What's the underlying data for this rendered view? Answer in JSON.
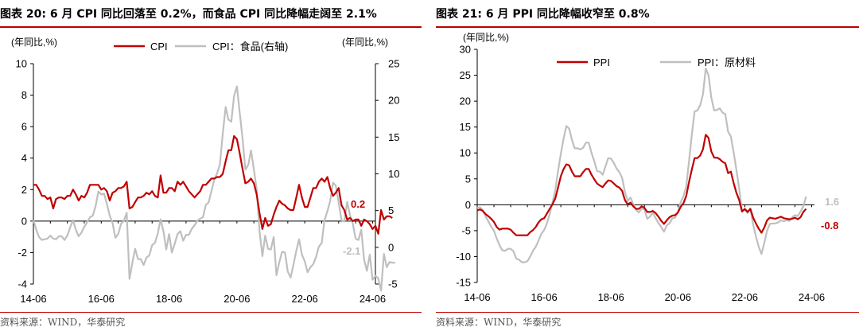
{
  "charts": [
    {
      "title": "图表 20:  6 月 CPI 同比回落至 0.2%，而食品 CPI 同比降幅走阔至 2.1%",
      "source": "资料来源：WIND，华泰研究",
      "chart_data": {
        "type": "line",
        "x_ticks": [
          "14-06",
          "16-06",
          "18-06",
          "20-06",
          "22-06",
          "24-06"
        ],
        "x_range": [
          "2014-06",
          "2024-07"
        ],
        "ylabel_left": "(年同比,%)",
        "ylabel_right": "(年同比,%)",
        "ylim_left": [
          -4,
          10
        ],
        "yticks_left": [
          -4,
          -2,
          0,
          2,
          4,
          6,
          8,
          10
        ],
        "ylim_right": [
          -5,
          25
        ],
        "yticks_right": [
          -5,
          0,
          5,
          10,
          15,
          20,
          25
        ],
        "legend_position": "top-center",
        "series": [
          {
            "name": "CPI",
            "axis": "left",
            "color": "#c00000",
            "start": "2014-06",
            "values": [
              2.3,
              2.3,
              2.0,
              1.6,
              1.6,
              1.4,
              1.5,
              0.8,
              1.4,
              1.5,
              1.5,
              1.4,
              1.6,
              1.6,
              2.0,
              1.7,
              1.3,
              1.6,
              1.5,
              1.8,
              2.3,
              2.3,
              2.3,
              2.3,
              2.0,
              2.1,
              1.9,
              1.3,
              1.8,
              1.9,
              2.1,
              2.1,
              2.2,
              2.5,
              0.8,
              0.9,
              1.2,
              1.5,
              1.5,
              1.6,
              1.8,
              1.7,
              1.9,
              1.6,
              1.5,
              2.9,
              1.8,
              1.8,
              2.1,
              2.1,
              1.9,
              2.5,
              2.3,
              2.5,
              2.2,
              1.9,
              1.7,
              1.5,
              1.7,
              1.9,
              2.3,
              2.3,
              2.5,
              2.7,
              2.7,
              2.8,
              2.8,
              3.0,
              3.8,
              4.5,
              4.5,
              5.4,
              5.2,
              4.3,
              3.3,
              2.4,
              2.5,
              2.7,
              2.4,
              1.7,
              0.5,
              -0.5,
              0.2,
              -0.3,
              -0.2,
              0.4,
              0.9,
              1.3,
              1.1,
              1.0,
              0.8,
              0.7,
              0.7,
              1.5,
              2.3,
              1.5,
              0.9,
              0.9,
              1.5,
              2.1,
              2.1,
              2.5,
              2.7,
              2.5,
              2.8,
              2.1,
              1.6,
              1.8,
              2.1,
              1.0,
              0.7,
              0.1,
              0.2,
              0.0,
              0.1,
              0.1,
              -0.3,
              0.1,
              0.0,
              -0.2,
              -0.5,
              -0.3,
              -0.8,
              0.7,
              0.1,
              0.3,
              0.3,
              0.2
            ]
          },
          {
            "name": "CPI：食品(右轴)",
            "axis": "right",
            "color": "#bfbfbf",
            "start": "2014-06",
            "values": [
              3.7,
              2.4,
              1.4,
              1.0,
              1.1,
              1.2,
              1.6,
              1.2,
              1.1,
              1.5,
              1.5,
              1.0,
              1.6,
              2.7,
              3.7,
              2.4,
              1.5,
              2.0,
              2.8,
              3.4,
              4.1,
              4.3,
              5.6,
              7.6,
              7.2,
              7.3,
              5.9,
              4.3,
              3.3,
              1.3,
              1.8,
              3.2,
              3.6,
              4.7,
              -4.3,
              -2.1,
              -0.2,
              -1.6,
              -1.6,
              -2.4,
              -1.4,
              -1.1,
              0.3,
              0.6,
              1.9,
              3.8,
              2.2,
              -0.3,
              1.8,
              -0.7,
              0.5,
              1.8,
              2.2,
              0.9,
              1.7,
              1.7,
              2.5,
              3.0,
              3.6,
              3.9,
              4.1,
              5.8,
              6.1,
              7.7,
              9.2,
              10.1,
              11.3,
              15.5,
              19.1,
              17.4,
              17.1,
              20.6,
              21.9,
              18.3,
              14.8,
              10.6,
              11.2,
              13.2,
              10.6,
              7.9,
              2.2,
              -1.2,
              1.6,
              -0.2,
              -0.3,
              1.4,
              -3.8,
              -2.0,
              -0.6,
              -0.7,
              -3.3,
              -4.1,
              -2.4,
              -0.5,
              1.1,
              -1.0,
              -1.9,
              -3.4,
              -2.7,
              -2.3,
              -1.3,
              0.1,
              0.6,
              3.7,
              4.9,
              6.3,
              8.8,
              8.4,
              6.1,
              3.7,
              3.5,
              6.2,
              4.4,
              3.2,
              1.2,
              1.0,
              2.4,
              -1.7,
              -3.2,
              -1.0,
              -4.4,
              -3.9,
              -4.2,
              -5.9,
              -0.9,
              -2.7,
              -2.0,
              -2.1,
              -2.1
            ]
          }
        ],
        "annotations": [
          {
            "text": "0.2",
            "series": "CPI",
            "color": "#c00000"
          },
          {
            "text": "-2.1",
            "series": "CPI：食品(右轴)",
            "color": "#bfbfbf"
          }
        ]
      }
    },
    {
      "title": "图表 21:  6 月 PPI 同比降幅收窄至 0.8%",
      "source": "资料来源：WIND，华泰研究",
      "chart_data": {
        "type": "line",
        "x_ticks": [
          "14-06",
          "16-06",
          "18-06",
          "20-06",
          "22-06",
          "24-06"
        ],
        "x_range": [
          "2014-06",
          "2024-07"
        ],
        "ylabel_left": "(年同比,%)",
        "ylim_left": [
          -15,
          30
        ],
        "yticks_left": [
          -15,
          -10,
          -5,
          0,
          5,
          10,
          15,
          20,
          25,
          30
        ],
        "legend_position": "top-center",
        "series": [
          {
            "name": "PPI",
            "axis": "left",
            "color": "#c00000",
            "start": "2014-06",
            "values": [
              -1.1,
              -0.9,
              -1.2,
              -1.8,
              -2.2,
              -2.7,
              -3.3,
              -4.3,
              -4.8,
              -4.6,
              -4.6,
              -4.6,
              -4.8,
              -5.4,
              -5.9,
              -5.9,
              -5.9,
              -5.9,
              -5.9,
              -5.3,
              -4.9,
              -4.3,
              -3.4,
              -2.8,
              -2.6,
              -1.7,
              -0.8,
              0.1,
              1.2,
              3.3,
              5.5,
              6.9,
              7.8,
              7.6,
              6.4,
              5.5,
              5.5,
              5.5,
              6.3,
              6.9,
              6.9,
              5.8,
              4.9,
              4.1,
              3.7,
              3.4,
              4.1,
              4.7,
              4.6,
              4.1,
              3.6,
              3.3,
              2.7,
              0.9,
              0.1,
              0.4,
              -0.3,
              -0.8,
              -0.8,
              -0.3,
              -0.6,
              -1.4,
              -1.4,
              -1.2,
              -1.6,
              -2.3,
              -3.1,
              -3.7,
              -3.0,
              -2.4,
              -2.1,
              -2.0,
              -1.5,
              -0.4,
              0.3,
              1.7,
              4.4,
              6.8,
              9.0,
              9.0,
              9.5,
              10.7,
              13.5,
              12.9,
              10.3,
              9.1,
              9.1,
              8.8,
              8.3,
              8.0,
              6.1,
              6.4,
              4.2,
              2.3,
              0.9,
              -1.3,
              -0.8,
              -1.4,
              -0.8,
              -2.5,
              -3.6,
              -4.6,
              -5.4,
              -4.4,
              -3.0,
              -2.5,
              -2.6,
              -2.7,
              -2.5,
              -2.3,
              -2.6,
              -2.7,
              -2.8,
              -2.7,
              -2.5,
              -2.8,
              -2.4,
              -1.4,
              -0.8
            ]
          },
          {
            "name": "PPI：原材料",
            "axis": "left",
            "color": "#bfbfbf",
            "start": "2014-06",
            "values": [
              -0.6,
              -0.5,
              -1.0,
              -2.2,
              -3.2,
              -4.2,
              -5.0,
              -6.5,
              -7.8,
              -8.8,
              -8.9,
              -8.5,
              -8.5,
              -9.0,
              -10.4,
              -10.6,
              -11.1,
              -11.1,
              -10.9,
              -10.0,
              -8.9,
              -8.1,
              -6.9,
              -5.6,
              -4.9,
              -3.6,
              -1.8,
              0.4,
              2.8,
              6.5,
              9.8,
              12.8,
              15.2,
              14.7,
              12.5,
              10.9,
              10.9,
              10.7,
              11.0,
              12.0,
              12.0,
              10.0,
              8.4,
              6.5,
              6.4,
              5.8,
              7.4,
              9.0,
              8.9,
              8.1,
              7.0,
              6.3,
              5.2,
              2.5,
              0.7,
              1.4,
              0.1,
              -1.0,
              -1.5,
              -0.7,
              -0.9,
              -2.7,
              -2.3,
              -1.5,
              -2.6,
              -3.5,
              -4.3,
              -5.2,
              -4.0,
              -3.6,
              -2.6,
              -2.5,
              -1.5,
              0.5,
              1.6,
              3.6,
              8.4,
              13.5,
              18.0,
              18.2,
              19.2,
              21.3,
              26.3,
              25.0,
              20.7,
              18.2,
              18.3,
              18.6,
              17.8,
              17.5,
              14.1,
              13.2,
              10.1,
              6.7,
              3.1,
              -1.3,
              -1.0,
              -1.6,
              -0.7,
              -3.8,
              -6.1,
              -8.1,
              -9.5,
              -7.4,
              -5.0,
              -3.7,
              -3.6,
              -3.6,
              -3.4,
              -3.0,
              -3.2,
              -3.0,
              -3.1,
              -2.4,
              -2.0,
              -2.2,
              -1.3,
              -0.3,
              1.6
            ]
          }
        ],
        "annotations": [
          {
            "text": "1.6",
            "series": "PPI：原材料",
            "color": "#bfbfbf"
          },
          {
            "text": "-0.8",
            "series": "PPI",
            "color": "#c00000"
          }
        ]
      }
    }
  ]
}
